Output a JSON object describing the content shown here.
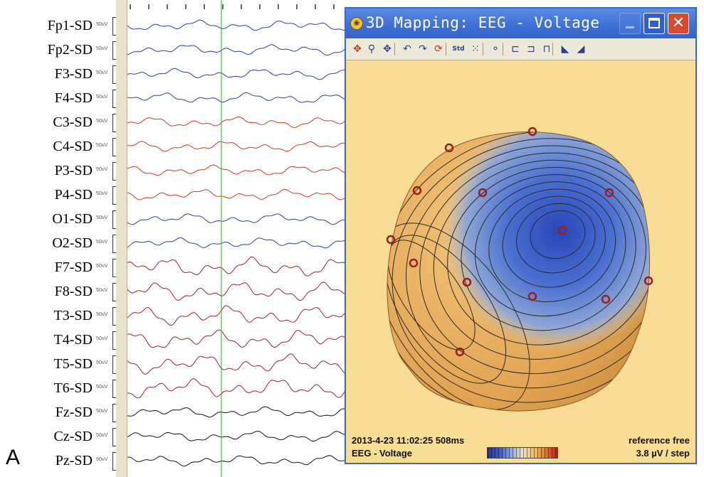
{
  "figure": {
    "panel_letter": "A"
  },
  "montage": {
    "scale_label": "50uV",
    "channels": [
      {
        "label": "Fp1-SD",
        "color": "#2b3fa6"
      },
      {
        "label": "Fp2-SD",
        "color": "#2b3fa6"
      },
      {
        "label": "F3-SD",
        "color": "#2b3fa6"
      },
      {
        "label": "F4-SD",
        "color": "#2b3fa6"
      },
      {
        "label": "C3-SD",
        "color": "#cf3b25"
      },
      {
        "label": "C4-SD",
        "color": "#cf3b25"
      },
      {
        "label": "P3-SD",
        "color": "#cf3b25"
      },
      {
        "label": "P4-SD",
        "color": "#cf3b25"
      },
      {
        "label": "O1-SD",
        "color": "#2b3fa6"
      },
      {
        "label": "O2-SD",
        "color": "#2b3fa6"
      },
      {
        "label": "F7-SD",
        "color": "#a3222b"
      },
      {
        "label": "F8-SD",
        "color": "#a3222b"
      },
      {
        "label": "T3-SD",
        "color": "#a3222b"
      },
      {
        "label": "T4-SD",
        "color": "#a3222b"
      },
      {
        "label": "T5-SD",
        "color": "#a3222b"
      },
      {
        "label": "T6-SD",
        "color": "#a3222b"
      },
      {
        "label": "Fz-SD",
        "color": "#111111"
      },
      {
        "label": "Cz-SD",
        "color": "#111111"
      },
      {
        "label": "Pz-SD",
        "color": "#111111"
      }
    ],
    "cursor_color": "#3cc43c"
  },
  "window": {
    "title": "3D Mapping: EEG - Voltage",
    "icon": "map-app-icon",
    "buttons": {
      "minimize": "minimize-icon",
      "maximize": "maximize-icon",
      "close": "close-icon"
    },
    "toolbar": [
      {
        "name": "rotate-tool-icon",
        "glyph": "✥",
        "red": true
      },
      {
        "name": "zoom-tool-icon",
        "glyph": "⚲",
        "red": false
      },
      {
        "name": "move-tool-icon",
        "glyph": "✥",
        "red": false
      },
      {
        "name": "rotate-left-icon",
        "glyph": "↶",
        "red": false
      },
      {
        "name": "rotate-right-icon",
        "glyph": "↷",
        "red": false
      },
      {
        "name": "rotate-z-icon",
        "glyph": "⟳",
        "red": true
      },
      {
        "name": "standard-electrodes-icon",
        "glyph": "Std",
        "red": false,
        "small": true
      },
      {
        "name": "grid-points-icon",
        "glyph": "⁙",
        "red": false
      },
      {
        "name": "electrode-labels-icon",
        "glyph": "⚬",
        "red": false
      },
      {
        "name": "view-front-icon",
        "glyph": "⊏",
        "red": false
      },
      {
        "name": "view-side-icon",
        "glyph": "⊐",
        "red": false
      },
      {
        "name": "view-top-icon",
        "glyph": "⊓",
        "red": false
      },
      {
        "name": "head-color-icon",
        "glyph": "◣",
        "red": false
      },
      {
        "name": "head-shade-icon",
        "glyph": "◢",
        "red": false
      }
    ],
    "background_color": "#f7dc94",
    "info": {
      "timestamp": "2013-4-23 11:02:25 508ms",
      "mode": "EEG - Voltage",
      "reference": "reference free",
      "step": "3.8 µV / step"
    },
    "colors": {
      "negative": "#2e4fc0",
      "positive": "#e0a24a",
      "electrode": "#9b1d1d"
    }
  }
}
